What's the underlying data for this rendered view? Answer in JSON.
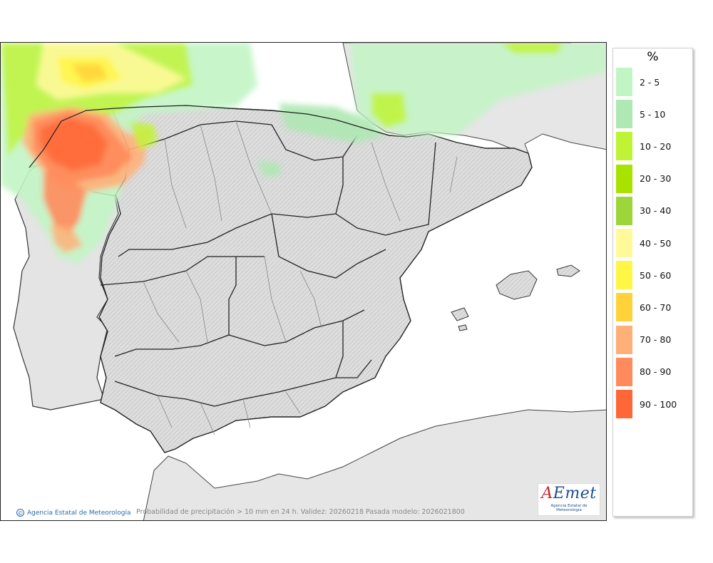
{
  "map": {
    "credit": "Agencia Estatal de Meteorología",
    "caption": "Probabilidad de precipitación > 10 mm en 24 h. Validez: 20260218 Pasada modelo: 2026021800",
    "logo": {
      "brand_a": "A",
      "brand_rest": "Emet",
      "sub": "Agencia Estatal de Meteorología"
    }
  },
  "legend": {
    "unit": "%",
    "items": [
      {
        "label": "2 - 5",
        "color": "#c2f5c4"
      },
      {
        "label": "5 - 10",
        "color": "#aee8b2"
      },
      {
        "label": "10 - 20",
        "color": "#bff435"
      },
      {
        "label": "20 - 30",
        "color": "#a8e200"
      },
      {
        "label": "30 - 40",
        "color": "#9dd63a"
      },
      {
        "label": "40 - 50",
        "color": "#fff99a"
      },
      {
        "label": "50 - 60",
        "color": "#fff646"
      },
      {
        "label": "60 - 70",
        "color": "#ffd13a"
      },
      {
        "label": "70 - 80",
        "color": "#ffb079"
      },
      {
        "label": "80 - 90",
        "color": "#ff8b5c"
      },
      {
        "label": "90 - 100",
        "color": "#ff6737"
      }
    ]
  }
}
